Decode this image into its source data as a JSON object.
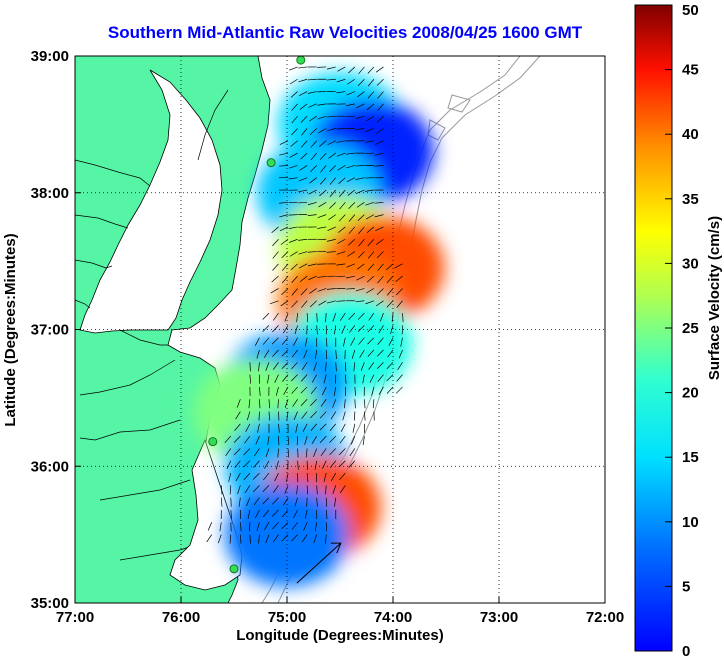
{
  "chart_data": {
    "type": "heatmap",
    "title": "Southern Mid-Atlantic Raw Velocities 2008/04/25 1600 GMT",
    "xlabel": "Longitude (Degrees:Minutes)",
    "ylabel": "Latitude (Degrees:Minutes)",
    "x_tick_labels": [
      "77:00",
      "76:00",
      "75:00",
      "74:00",
      "73:00",
      "72:00"
    ],
    "x_tick_values": [
      -77,
      -76,
      -75,
      -74,
      -73,
      -72
    ],
    "y_tick_labels": [
      "35:00",
      "36:00",
      "37:00",
      "38:00",
      "39:00"
    ],
    "y_tick_values": [
      35,
      36,
      37,
      38,
      39
    ],
    "xlim": [
      -77,
      -72
    ],
    "ylim": [
      35,
      39
    ],
    "grid": true,
    "colorbar": {
      "label": "Surface Velocity (cm/s)",
      "range": [
        0,
        50
      ],
      "tick_labels": [
        "0",
        "5",
        "10",
        "15",
        "20",
        "25",
        "30",
        "35",
        "40",
        "45",
        "50"
      ],
      "colormap": "jet"
    },
    "reference_arrow": {
      "lon": -74.7,
      "lat": 35.35
    },
    "stations": [
      {
        "lon": -74.87,
        "lat": 38.97
      },
      {
        "lon": -75.15,
        "lat": 38.22
      },
      {
        "lon": -75.7,
        "lat": 36.18
      },
      {
        "lon": -75.5,
        "lat": 35.25
      }
    ],
    "velocity_regions": [
      {
        "lon": -74.5,
        "lat": 38.5,
        "speed": 17
      },
      {
        "lon": -74.2,
        "lat": 38.3,
        "speed": 8
      },
      {
        "lon": -74.7,
        "lat": 38.0,
        "speed": 16
      },
      {
        "lon": -74.5,
        "lat": 37.6,
        "speed": 28
      },
      {
        "lon": -74.1,
        "lat": 37.45,
        "speed": 40
      },
      {
        "lon": -74.5,
        "lat": 37.2,
        "speed": 38
      },
      {
        "lon": -74.4,
        "lat": 36.9,
        "speed": 20
      },
      {
        "lon": -75.0,
        "lat": 36.6,
        "speed": 14
      },
      {
        "lon": -75.3,
        "lat": 36.4,
        "speed": 25
      },
      {
        "lon": -75.0,
        "lat": 36.0,
        "speed": 15
      },
      {
        "lon": -74.7,
        "lat": 35.7,
        "speed": 40
      },
      {
        "lon": -75.0,
        "lat": 35.5,
        "speed": 12
      }
    ]
  }
}
